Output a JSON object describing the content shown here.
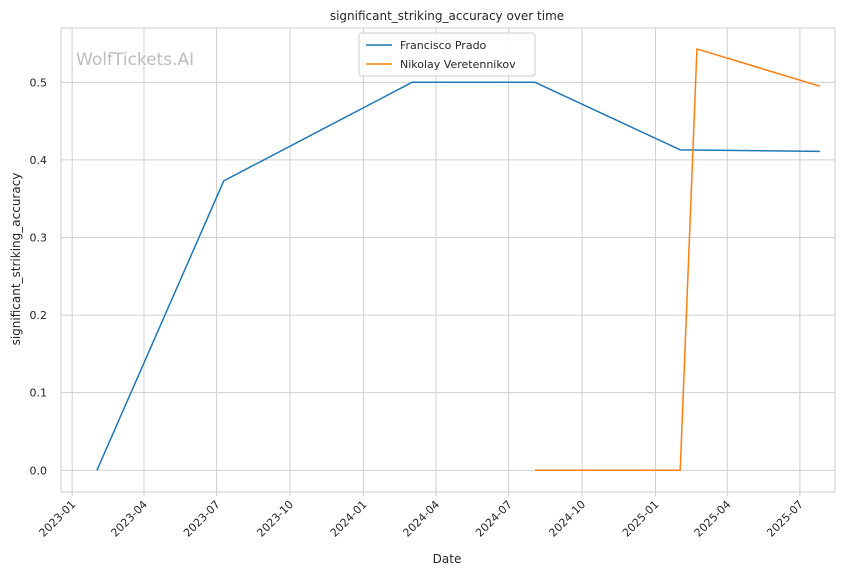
{
  "watermark": "WolfTickets.AI",
  "chart_data": {
    "type": "line",
    "title": "significant_striking_accuracy over time",
    "xlabel": "Date",
    "ylabel": "significant_striking_accuracy",
    "x_ticks": [
      "2023-01",
      "2023-04",
      "2023-07",
      "2023-10",
      "2024-01",
      "2024-04",
      "2024-07",
      "2024-10",
      "2025-01",
      "2025-04",
      "2025-07"
    ],
    "y_ticks": [
      0.0,
      0.1,
      0.2,
      0.3,
      0.4,
      0.5
    ],
    "y_tick_labels": [
      "0.0",
      "0.1",
      "0.2",
      "0.3",
      "0.4",
      "0.5"
    ],
    "xlim": [
      "2022-12-18",
      "2025-08-14"
    ],
    "ylim": [
      -0.028,
      0.57
    ],
    "grid": true,
    "legend_position": "top-center",
    "series": [
      {
        "name": "Francisco Prado",
        "color": "#1f77b4",
        "points": [
          {
            "x": "2023-02-01",
            "y": 0.0
          },
          {
            "x": "2023-07-10",
            "y": 0.373
          },
          {
            "x": "2024-03-02",
            "y": 0.5
          },
          {
            "x": "2024-08-03",
            "y": 0.5
          },
          {
            "x": "2025-02-01",
            "y": 0.413
          },
          {
            "x": "2025-07-26",
            "y": 0.411
          }
        ]
      },
      {
        "name": "Nikolay Veretennikov",
        "color": "#ff7f0e",
        "points": [
          {
            "x": "2024-08-03",
            "y": 0.0
          },
          {
            "x": "2025-02-01",
            "y": 0.0
          },
          {
            "x": "2025-02-22",
            "y": 0.543
          },
          {
            "x": "2025-07-26",
            "y": 0.495
          }
        ]
      }
    ]
  }
}
